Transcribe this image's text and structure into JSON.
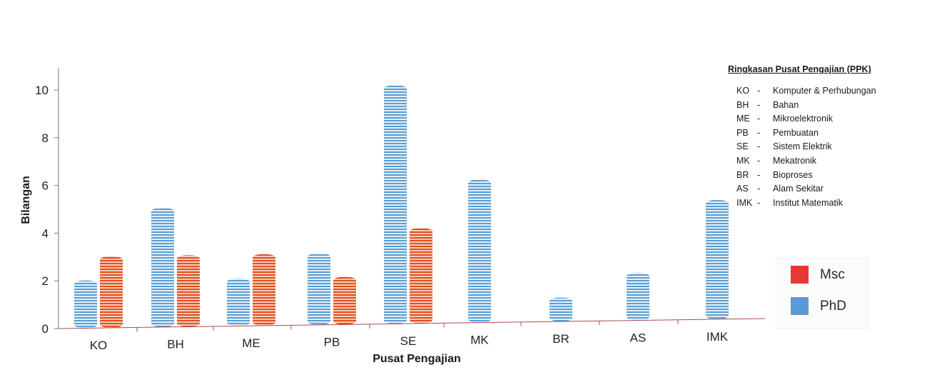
{
  "chart_data": {
    "type": "bar",
    "xlabel": "Pusat Pengajian",
    "ylabel": "Bilangan",
    "ylim": [
      0,
      11
    ],
    "yticks": [
      0,
      2,
      4,
      6,
      8,
      10
    ],
    "categories": [
      "KO",
      "BH",
      "ME",
      "PB",
      "SE",
      "MK",
      "BR",
      "AS",
      "IMK"
    ],
    "series": [
      {
        "name": "PhD",
        "color": "#5a9fd4",
        "values": [
          2,
          5,
          2,
          3,
          10,
          6,
          1,
          2,
          5
        ]
      },
      {
        "name": "Msc",
        "color": "#e24f22",
        "values": [
          3,
          3,
          3,
          2,
          4,
          0,
          0,
          0,
          0
        ]
      }
    ],
    "legend": {
      "position": "right",
      "items": [
        {
          "label": "Msc",
          "color": "#e53935"
        },
        {
          "label": "PhD",
          "color": "#5b9bd5"
        }
      ]
    },
    "grid": false
  },
  "abbreviations": {
    "title": "Ringkasan Pusat Pengajian (PPK)",
    "items": [
      {
        "code": "KO",
        "name": "Komputer & Perhubungan"
      },
      {
        "code": "BH",
        "name": "Bahan"
      },
      {
        "code": "ME",
        "name": "Mikroelektronik"
      },
      {
        "code": "PB",
        "name": "Pembuatan"
      },
      {
        "code": "SE",
        "name": "Sistem Elektrik"
      },
      {
        "code": "MK",
        "name": "Mekatronik"
      },
      {
        "code": "BR",
        "name": "Bioproses"
      },
      {
        "code": "AS",
        "name": "Alam Sekitar"
      },
      {
        "code": "IMK",
        "name": "Institut Matematik"
      }
    ]
  }
}
